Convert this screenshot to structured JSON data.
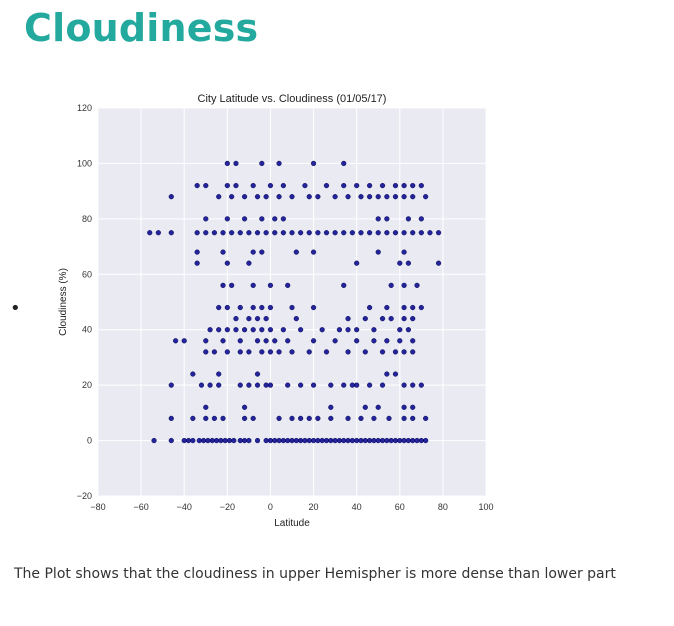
{
  "page": {
    "heading": "Cloudiness",
    "caption": "The Plot shows that the cloudiness in upper Hemispher is more dense than lower part"
  },
  "chart_data": {
    "type": "scatter",
    "title": "City Latitude vs. Cloudiness (01/05/17)",
    "xlabel": "Latitude",
    "ylabel": "Cloudiness (%)",
    "xlim": [
      -80,
      100
    ],
    "ylim": [
      -20,
      120
    ],
    "xticks": [
      -80,
      -60,
      -40,
      -20,
      0,
      20,
      40,
      60,
      80,
      100
    ],
    "yticks": [
      -20,
      0,
      20,
      40,
      60,
      80,
      100,
      120
    ],
    "grid": true,
    "marker_color": "#00008b",
    "plot_bg": "#eaeaf2",
    "series": [
      {
        "points": [
          [
            -54,
            0
          ],
          [
            -46,
            0
          ],
          [
            -40,
            0
          ],
          [
            -38,
            0
          ],
          [
            -36,
            0
          ],
          [
            -33,
            0
          ],
          [
            -31,
            0
          ],
          [
            -29,
            0
          ],
          [
            -27,
            0
          ],
          [
            -25,
            0
          ],
          [
            -23,
            0
          ],
          [
            -21,
            0
          ],
          [
            -19,
            0
          ],
          [
            -17,
            0
          ],
          [
            -14,
            0
          ],
          [
            -12,
            0
          ],
          [
            -10,
            0
          ],
          [
            -6,
            0
          ],
          [
            -2,
            0
          ],
          [
            0,
            0
          ],
          [
            2,
            0
          ],
          [
            4,
            0
          ],
          [
            6,
            0
          ],
          [
            8,
            0
          ],
          [
            10,
            0
          ],
          [
            12,
            0
          ],
          [
            14,
            0
          ],
          [
            16,
            0
          ],
          [
            18,
            0
          ],
          [
            20,
            0
          ],
          [
            22,
            0
          ],
          [
            24,
            0
          ],
          [
            26,
            0
          ],
          [
            28,
            0
          ],
          [
            30,
            0
          ],
          [
            32,
            0
          ],
          [
            34,
            0
          ],
          [
            36,
            0
          ],
          [
            38,
            0
          ],
          [
            40,
            0
          ],
          [
            42,
            0
          ],
          [
            44,
            0
          ],
          [
            46,
            0
          ],
          [
            48,
            0
          ],
          [
            50,
            0
          ],
          [
            52,
            0
          ],
          [
            54,
            0
          ],
          [
            56,
            0
          ],
          [
            58,
            0
          ],
          [
            60,
            0
          ],
          [
            62,
            0
          ],
          [
            64,
            0
          ],
          [
            66,
            0
          ],
          [
            68,
            0
          ],
          [
            70,
            0
          ],
          [
            72,
            0
          ],
          [
            -46,
            8
          ],
          [
            -36,
            8
          ],
          [
            -30,
            8
          ],
          [
            -26,
            8
          ],
          [
            -22,
            8
          ],
          [
            -12,
            8
          ],
          [
            -8,
            8
          ],
          [
            4,
            8
          ],
          [
            10,
            8
          ],
          [
            14,
            8
          ],
          [
            18,
            8
          ],
          [
            22,
            8
          ],
          [
            28,
            8
          ],
          [
            36,
            8
          ],
          [
            42,
            8
          ],
          [
            48,
            8
          ],
          [
            55,
            8
          ],
          [
            62,
            8
          ],
          [
            66,
            8
          ],
          [
            72,
            8
          ],
          [
            -30,
            12
          ],
          [
            -12,
            12
          ],
          [
            28,
            12
          ],
          [
            44,
            12
          ],
          [
            50,
            12
          ],
          [
            62,
            12
          ],
          [
            66,
            12
          ],
          [
            -46,
            20
          ],
          [
            -32,
            20
          ],
          [
            -28,
            20
          ],
          [
            -24,
            20
          ],
          [
            -14,
            20
          ],
          [
            -10,
            20
          ],
          [
            -6,
            20
          ],
          [
            -2,
            20
          ],
          [
            0,
            20
          ],
          [
            8,
            20
          ],
          [
            14,
            20
          ],
          [
            20,
            20
          ],
          [
            28,
            20
          ],
          [
            34,
            20
          ],
          [
            38,
            20
          ],
          [
            40,
            20
          ],
          [
            46,
            20
          ],
          [
            52,
            20
          ],
          [
            62,
            20
          ],
          [
            66,
            20
          ],
          [
            70,
            20
          ],
          [
            -36,
            24
          ],
          [
            -24,
            24
          ],
          [
            -6,
            24
          ],
          [
            54,
            24
          ],
          [
            58,
            24
          ],
          [
            -30,
            32
          ],
          [
            -26,
            32
          ],
          [
            -20,
            32
          ],
          [
            -14,
            32
          ],
          [
            -10,
            32
          ],
          [
            -4,
            32
          ],
          [
            0,
            32
          ],
          [
            4,
            32
          ],
          [
            10,
            32
          ],
          [
            18,
            32
          ],
          [
            26,
            32
          ],
          [
            36,
            32
          ],
          [
            44,
            32
          ],
          [
            52,
            32
          ],
          [
            58,
            32
          ],
          [
            62,
            32
          ],
          [
            66,
            32
          ],
          [
            -44,
            36
          ],
          [
            -40,
            36
          ],
          [
            -30,
            36
          ],
          [
            -22,
            36
          ],
          [
            -14,
            36
          ],
          [
            -6,
            36
          ],
          [
            -2,
            36
          ],
          [
            2,
            36
          ],
          [
            8,
            36
          ],
          [
            20,
            36
          ],
          [
            30,
            36
          ],
          [
            40,
            36
          ],
          [
            48,
            36
          ],
          [
            54,
            36
          ],
          [
            60,
            36
          ],
          [
            66,
            36
          ],
          [
            -28,
            40
          ],
          [
            -24,
            40
          ],
          [
            -20,
            40
          ],
          [
            -16,
            40
          ],
          [
            -12,
            40
          ],
          [
            -8,
            40
          ],
          [
            -4,
            40
          ],
          [
            0,
            40
          ],
          [
            6,
            40
          ],
          [
            14,
            40
          ],
          [
            24,
            40
          ],
          [
            32,
            40
          ],
          [
            36,
            40
          ],
          [
            40,
            40
          ],
          [
            48,
            40
          ],
          [
            60,
            40
          ],
          [
            64,
            40
          ],
          [
            -16,
            44
          ],
          [
            -10,
            44
          ],
          [
            -6,
            44
          ],
          [
            -2,
            44
          ],
          [
            12,
            44
          ],
          [
            36,
            44
          ],
          [
            44,
            44
          ],
          [
            52,
            44
          ],
          [
            56,
            44
          ],
          [
            62,
            44
          ],
          [
            66,
            44
          ],
          [
            -24,
            48
          ],
          [
            -20,
            48
          ],
          [
            -14,
            48
          ],
          [
            -8,
            48
          ],
          [
            -4,
            48
          ],
          [
            0,
            48
          ],
          [
            10,
            48
          ],
          [
            20,
            48
          ],
          [
            46,
            48
          ],
          [
            54,
            48
          ],
          [
            62,
            48
          ],
          [
            66,
            48
          ],
          [
            70,
            48
          ],
          [
            -22,
            56
          ],
          [
            -18,
            56
          ],
          [
            -8,
            56
          ],
          [
            0,
            56
          ],
          [
            8,
            56
          ],
          [
            34,
            56
          ],
          [
            56,
            56
          ],
          [
            62,
            56
          ],
          [
            68,
            56
          ],
          [
            -34,
            64
          ],
          [
            -20,
            64
          ],
          [
            -10,
            64
          ],
          [
            40,
            64
          ],
          [
            60,
            64
          ],
          [
            64,
            64
          ],
          [
            78,
            64
          ],
          [
            -34,
            68
          ],
          [
            -22,
            68
          ],
          [
            -8,
            68
          ],
          [
            -4,
            68
          ],
          [
            12,
            68
          ],
          [
            20,
            68
          ],
          [
            50,
            68
          ],
          [
            62,
            68
          ],
          [
            -56,
            75
          ],
          [
            -52,
            75
          ],
          [
            -46,
            75
          ],
          [
            -34,
            75
          ],
          [
            -30,
            75
          ],
          [
            -26,
            75
          ],
          [
            -22,
            75
          ],
          [
            -18,
            75
          ],
          [
            -14,
            75
          ],
          [
            -10,
            75
          ],
          [
            -6,
            75
          ],
          [
            -2,
            75
          ],
          [
            2,
            75
          ],
          [
            6,
            75
          ],
          [
            10,
            75
          ],
          [
            14,
            75
          ],
          [
            18,
            75
          ],
          [
            22,
            75
          ],
          [
            26,
            75
          ],
          [
            30,
            75
          ],
          [
            34,
            75
          ],
          [
            38,
            75
          ],
          [
            42,
            75
          ],
          [
            46,
            75
          ],
          [
            50,
            75
          ],
          [
            54,
            75
          ],
          [
            58,
            75
          ],
          [
            62,
            75
          ],
          [
            66,
            75
          ],
          [
            70,
            75
          ],
          [
            74,
            75
          ],
          [
            78,
            75
          ],
          [
            -30,
            80
          ],
          [
            -20,
            80
          ],
          [
            -12,
            80
          ],
          [
            -4,
            80
          ],
          [
            2,
            80
          ],
          [
            6,
            80
          ],
          [
            50,
            80
          ],
          [
            54,
            80
          ],
          [
            64,
            80
          ],
          [
            70,
            80
          ],
          [
            -46,
            88
          ],
          [
            -24,
            88
          ],
          [
            -18,
            88
          ],
          [
            -12,
            88
          ],
          [
            -6,
            88
          ],
          [
            -2,
            88
          ],
          [
            4,
            88
          ],
          [
            10,
            88
          ],
          [
            18,
            88
          ],
          [
            22,
            88
          ],
          [
            30,
            88
          ],
          [
            36,
            88
          ],
          [
            42,
            88
          ],
          [
            46,
            88
          ],
          [
            50,
            88
          ],
          [
            54,
            88
          ],
          [
            58,
            88
          ],
          [
            62,
            88
          ],
          [
            66,
            88
          ],
          [
            72,
            88
          ],
          [
            -34,
            92
          ],
          [
            -30,
            92
          ],
          [
            -20,
            92
          ],
          [
            -16,
            92
          ],
          [
            -8,
            92
          ],
          [
            0,
            92
          ],
          [
            6,
            92
          ],
          [
            16,
            92
          ],
          [
            26,
            92
          ],
          [
            34,
            92
          ],
          [
            40,
            92
          ],
          [
            46,
            92
          ],
          [
            52,
            92
          ],
          [
            58,
            92
          ],
          [
            62,
            92
          ],
          [
            66,
            92
          ],
          [
            70,
            92
          ],
          [
            -20,
            100
          ],
          [
            -16,
            100
          ],
          [
            -4,
            100
          ],
          [
            4,
            100
          ],
          [
            20,
            100
          ],
          [
            34,
            100
          ]
        ]
      }
    ]
  }
}
